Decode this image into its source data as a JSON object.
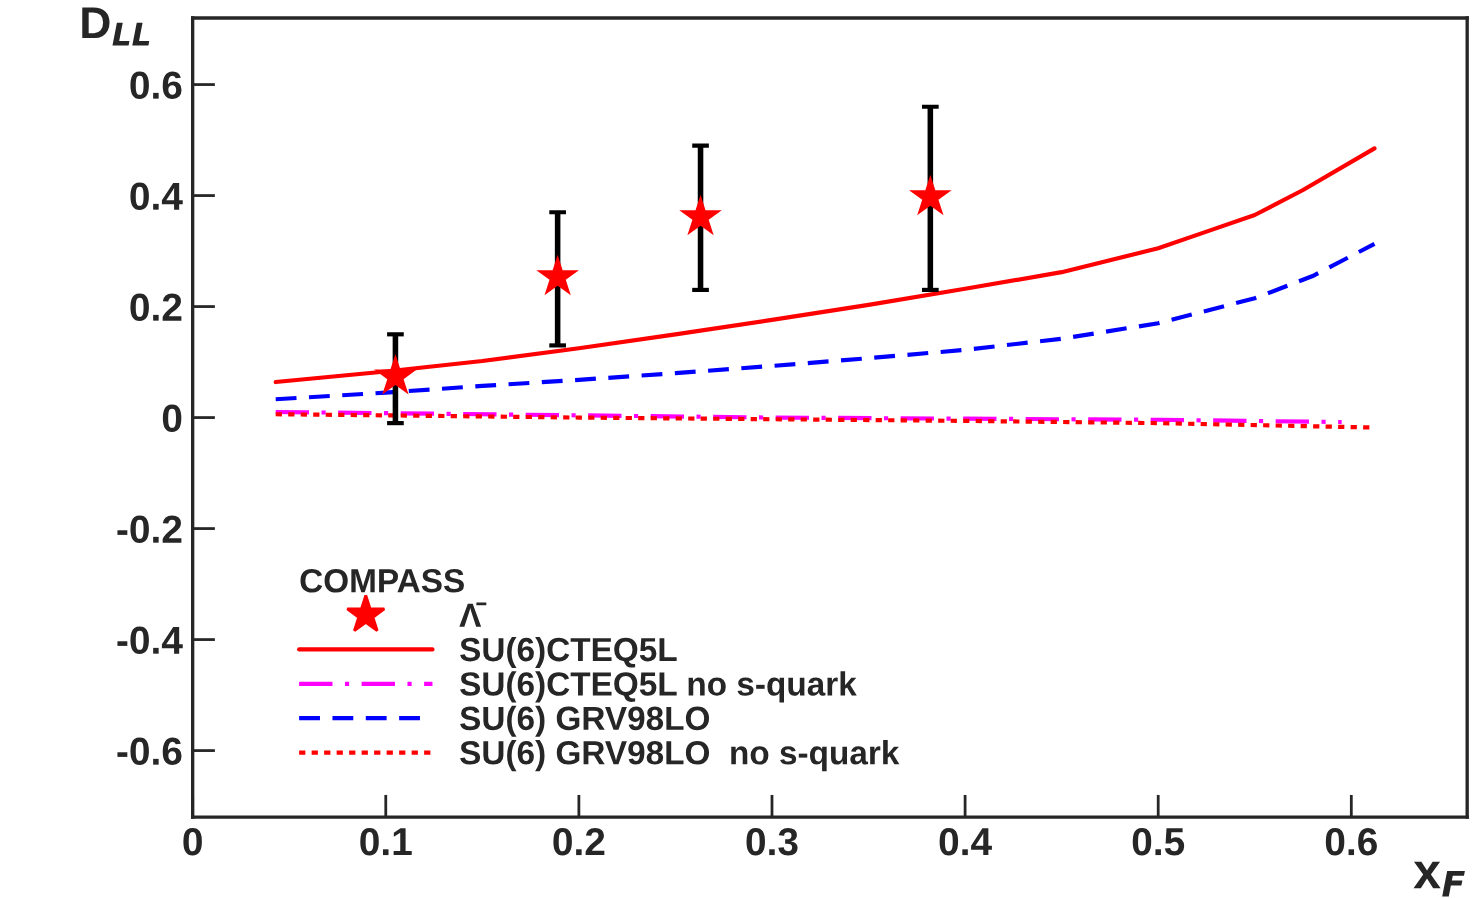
{
  "chart_data": {
    "type": "line",
    "xlabel": "x$_{F}$",
    "ylabel": "D$_{LL}$",
    "legend_title": "COMPASS",
    "legend": "bottom left",
    "grid": false,
    "xlim": [
      0,
      0.66
    ],
    "ylim": [
      -0.72,
      0.72
    ],
    "xticks": [
      0,
      0.1,
      0.2,
      0.3,
      0.4,
      0.5,
      0.6
    ],
    "yticks": [
      -0.6,
      -0.4,
      -0.2,
      0,
      0.2,
      0.4,
      0.6
    ],
    "series": [
      {
        "name": "Λ̄",
        "type": "scatter",
        "marker": "star",
        "color": "#ff0000",
        "x": [
          0.105,
          0.189,
          0.263,
          0.382
        ],
        "values": [
          0.074,
          0.253,
          0.361,
          0.397
        ],
        "errors": [
          [
            -0.01,
            0.15
          ],
          [
            0.13,
            0.37
          ],
          [
            0.23,
            0.49
          ],
          [
            0.23,
            0.56
          ]
        ]
      },
      {
        "name": "SU(6)CTEQ5L",
        "line_style": "solid",
        "color": "#ff0000",
        "x": [
          0.043,
          0.1,
          0.15,
          0.2,
          0.25,
          0.3,
          0.35,
          0.4,
          0.45,
          0.5,
          0.525,
          0.55,
          0.575,
          0.612
        ],
        "values": [
          0.064,
          0.083,
          0.102,
          0.125,
          0.15,
          0.176,
          0.203,
          0.232,
          0.262,
          0.305,
          0.335,
          0.365,
          0.41,
          0.485
        ]
      },
      {
        "name": "SU(6)CTEQ5L no s-quark",
        "line_style": "dashdot",
        "color": "#ff00ff",
        "x": [
          0.043,
          0.1,
          0.2,
          0.3,
          0.4,
          0.5,
          0.595
        ],
        "values": [
          0.01,
          0.008,
          0.004,
          0.0,
          -0.002,
          -0.004,
          -0.008
        ]
      },
      {
        "name": "SU(6) GRV98LO",
        "line_style": "dashed",
        "color": "#0000ff",
        "x": [
          0.043,
          0.1,
          0.15,
          0.2,
          0.25,
          0.3,
          0.35,
          0.4,
          0.45,
          0.5,
          0.55,
          0.58,
          0.612
        ],
        "values": [
          0.033,
          0.045,
          0.057,
          0.068,
          0.08,
          0.093,
          0.107,
          0.122,
          0.142,
          0.17,
          0.215,
          0.255,
          0.313
        ]
      },
      {
        "name": "SU(6) GRV98LO  no s-quark",
        "line_style": "dotted",
        "color": "#ff0000",
        "x": [
          0.043,
          0.1,
          0.2,
          0.3,
          0.4,
          0.5,
          0.612
        ],
        "values": [
          0.006,
          0.004,
          0.0,
          -0.003,
          -0.006,
          -0.01,
          -0.018
        ]
      }
    ]
  }
}
